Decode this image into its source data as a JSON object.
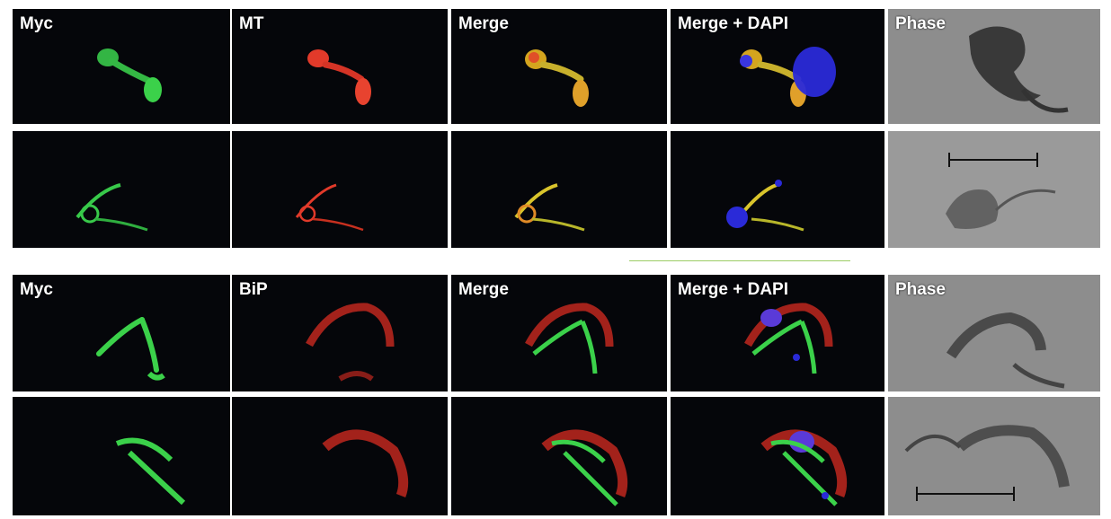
{
  "figure": {
    "top_block": {
      "labels": [
        "Myc",
        "MT",
        "Merge",
        "Merge + DAPI",
        "Phase"
      ]
    },
    "bottom_block": {
      "labels": [
        "Myc",
        "BiP",
        "Merge",
        "Merge + DAPI",
        "Phase"
      ]
    }
  },
  "colors": {
    "myc": "#3bd14a",
    "mt": "#e23a2a",
    "bip": "#c0281e",
    "dapi": "#2a2ad8",
    "background": "#05060a",
    "divider": "#9ccc65"
  }
}
